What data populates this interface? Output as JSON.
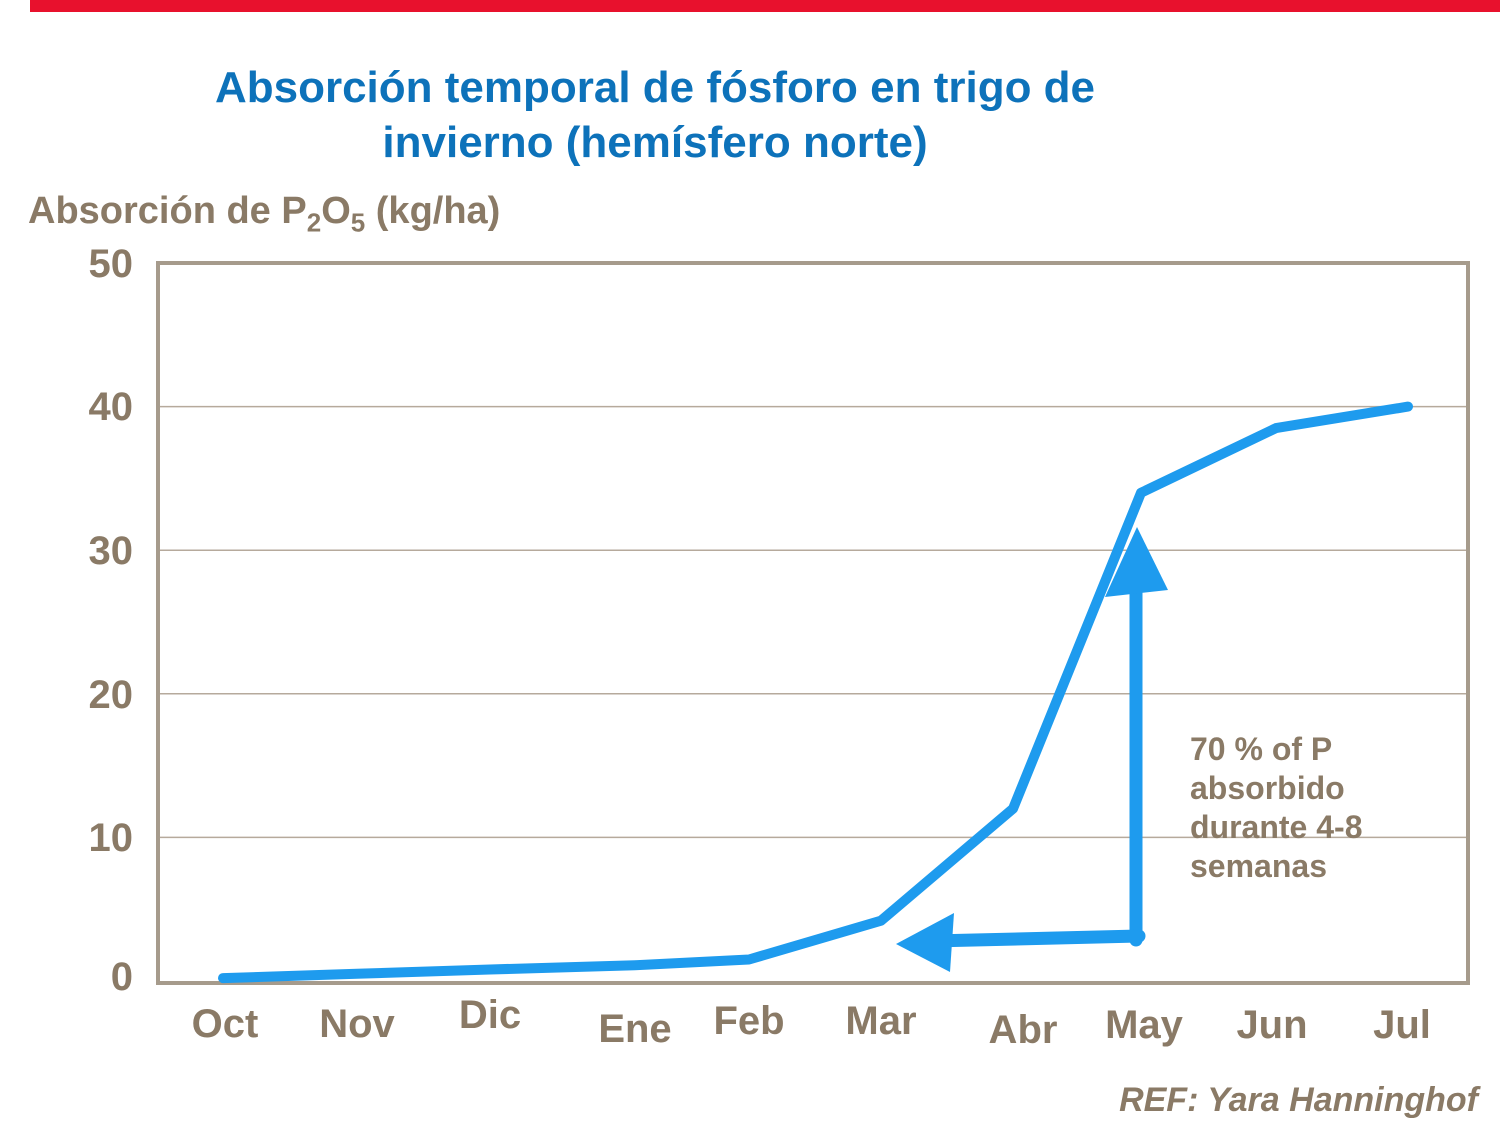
{
  "accent_bar_color": "#e8112d",
  "title": {
    "line1": "Absorción temporal de fósforo en trigo de",
    "line2": "invierno (hemísfero norte)"
  },
  "y_axis": {
    "label_prefix": "Absorción de P",
    "label_sub1": "2",
    "label_mid": "O",
    "label_sub2": "5",
    "label_suffix": " (kg/ha)",
    "ticks": [
      "50",
      "40",
      "30",
      "20",
      "10",
      "0"
    ]
  },
  "annotation": {
    "line1": "70 % of P",
    "line2": "absorbido",
    "line3": "durante 4-8",
    "line4": "semanas"
  },
  "reference": "REF: Yara Hanninghof",
  "colors": {
    "title_blue": "#0d72ba",
    "curve_blue": "#1e9bee",
    "taupe_text": "#8a7a66",
    "gridline": "#b6aa9c",
    "plot_border": "#a69b8c",
    "accent_red": "#e8112d"
  },
  "chart_data": {
    "type": "line",
    "title": "Absorción temporal de fósforo en trigo de invierno (hemísfero norte)",
    "ylabel": "Absorción de P2O5 (kg/ha)",
    "xlabel": "",
    "categories": [
      "Oct",
      "Nov",
      "Dic",
      "Ene",
      "Feb",
      "Mar",
      "Abr",
      "May",
      "Jun",
      "Jul"
    ],
    "values": [
      0.2,
      0.5,
      0.8,
      1.1,
      1.5,
      4.2,
      12,
      34,
      38.5,
      40
    ],
    "ylim": [
      0,
      50
    ],
    "yticks": [
      0,
      10,
      20,
      30,
      40,
      50
    ],
    "grid": true,
    "legend": false,
    "series_name": "Absorción de P2O5 (kg/ha)",
    "annotations": [
      "70 % of P absorbido durante 4-8 semanas"
    ]
  }
}
